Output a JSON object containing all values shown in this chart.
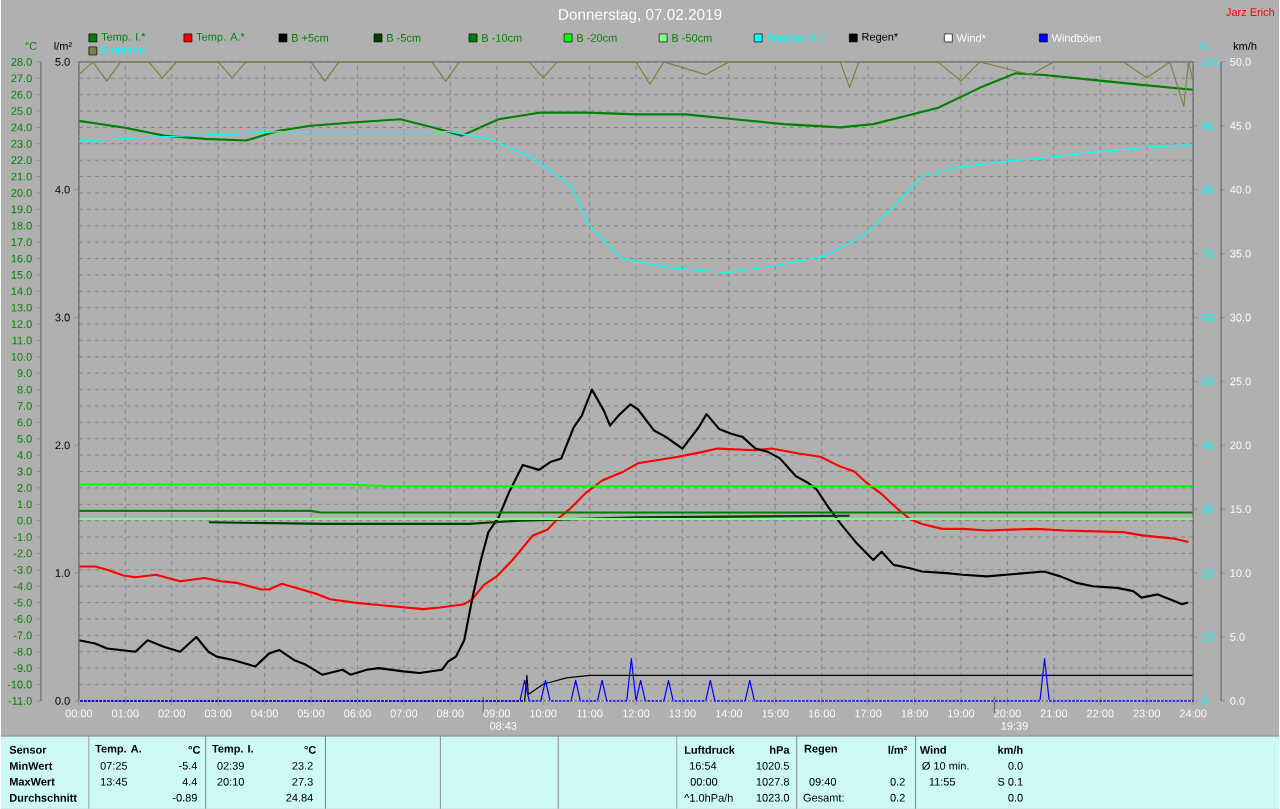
{
  "chart_data": [
    {
      "type": "line",
      "title": "Donnerstag, 07.02.2019",
      "ylabel": "°C",
      "y2label": "l/m²",
      "y3label": "%",
      "legend": "top",
      "grid": true,
      "xlim": [
        0,
        24
      ],
      "xticks": [
        {
          "value": 0,
          "label": "00:00"
        },
        {
          "value": 1,
          "label": "01:00"
        },
        {
          "value": 2,
          "label": "02:00"
        },
        {
          "value": 3,
          "label": "03:00"
        },
        {
          "value": 4,
          "label": "04:00"
        },
        {
          "value": 5,
          "label": "05:00"
        },
        {
          "value": 6,
          "label": "06:00"
        },
        {
          "value": 7,
          "label": "07:00"
        },
        {
          "value": 8,
          "label": "08:00"
        },
        {
          "value": 9,
          "label": "09:00"
        },
        {
          "value": 10,
          "label": "10:00"
        },
        {
          "value": 11,
          "label": "11:00"
        },
        {
          "value": 12,
          "label": "12:00"
        },
        {
          "value": 13,
          "label": "13:00"
        },
        {
          "value": 14,
          "label": "14:00"
        },
        {
          "value": 15,
          "label": "15:00"
        },
        {
          "value": 16,
          "label": "16:00"
        },
        {
          "value": 17,
          "label": "17:00"
        },
        {
          "value": 18,
          "label": "18:00"
        },
        {
          "value": 19,
          "label": "19:00"
        },
        {
          "value": 20,
          "label": "20:00"
        },
        {
          "value": 21,
          "label": "21:00"
        },
        {
          "value": 22,
          "label": "22:00"
        },
        {
          "value": 23,
          "label": "23:00"
        },
        {
          "value": 24,
          "label": "24:00"
        }
      ],
      "ylim": [
        -11,
        28
      ],
      "yticks": [
        {
          "value": -11,
          "label": "-11.0"
        },
        {
          "value": -10,
          "label": "-10.0"
        },
        {
          "value": -9,
          "label": "-9.0"
        },
        {
          "value": -8,
          "label": "-8.0"
        },
        {
          "value": -7,
          "label": "-7.0"
        },
        {
          "value": -6,
          "label": "-6.0"
        },
        {
          "value": -5,
          "label": "-5.0"
        },
        {
          "value": -4,
          "label": "-4.0"
        },
        {
          "value": -3,
          "label": "-3.0"
        },
        {
          "value": -2,
          "label": "-2.0"
        },
        {
          "value": -1,
          "label": "-1.0"
        },
        {
          "value": 0,
          "label": "0.0"
        },
        {
          "value": 1,
          "label": "1.0"
        },
        {
          "value": 2,
          "label": "2.0"
        },
        {
          "value": 3,
          "label": "3.0"
        },
        {
          "value": 4,
          "label": "4.0"
        },
        {
          "value": 5,
          "label": "5.0"
        },
        {
          "value": 6,
          "label": "6.0"
        },
        {
          "value": 7,
          "label": "7.0"
        },
        {
          "value": 8,
          "label": "8.0"
        },
        {
          "value": 9,
          "label": "9.0"
        },
        {
          "value": 10,
          "label": "10.0"
        },
        {
          "value": 11,
          "label": "11.0"
        },
        {
          "value": 12,
          "label": "12.0"
        },
        {
          "value": 13,
          "label": "13.0"
        },
        {
          "value": 14,
          "label": "14.0"
        },
        {
          "value": 15,
          "label": "15.0"
        },
        {
          "value": 16,
          "label": "16.0"
        },
        {
          "value": 17,
          "label": "17.0"
        },
        {
          "value": 18,
          "label": "18.0"
        },
        {
          "value": 19,
          "label": "19.0"
        },
        {
          "value": 20,
          "label": "20.0"
        },
        {
          "value": 21,
          "label": "21.0"
        },
        {
          "value": 22,
          "label": "22.0"
        },
        {
          "value": 23,
          "label": "23.0"
        },
        {
          "value": 24,
          "label": "24.0"
        },
        {
          "value": 25,
          "label": "25.0"
        },
        {
          "value": 26,
          "label": "26.0"
        },
        {
          "value": 27,
          "label": "27.0"
        },
        {
          "value": 28,
          "label": "28.0"
        }
      ],
      "y2lim": [
        0,
        5
      ],
      "y2ticks": [
        {
          "value": 0,
          "label": "0.0"
        },
        {
          "value": 1,
          "label": "1.0"
        },
        {
          "value": 2,
          "label": "2.0"
        },
        {
          "value": 3,
          "label": "3.0"
        },
        {
          "value": 4,
          "label": "4.0"
        },
        {
          "value": 5,
          "label": "5.0"
        }
      ],
      "y3lim": [
        0,
        100
      ],
      "y3ticks": [
        0,
        10,
        20,
        30,
        40,
        50,
        60,
        70,
        80,
        90,
        100
      ],
      "series": [
        {
          "name": "Temp. I.*",
          "color": "#008000",
          "x": [
            0,
            0.96,
            1.84,
            2.72,
            3.6,
            4.3,
            5.0,
            5.88,
            6.93,
            7.63,
            8.25,
            9.04,
            9.91,
            10.96,
            12.02,
            13.07,
            14.12,
            15.18,
            16.4,
            17.11,
            17.81,
            18.51,
            19.39,
            20.17,
            20.79,
            21.84,
            22.89,
            24
          ],
          "values": [
            24.4,
            24.0,
            23.5,
            23.3,
            23.2,
            23.8,
            24.1,
            24.3,
            24.5,
            24.0,
            23.5,
            24.5,
            24.9,
            24.9,
            24.8,
            24.8,
            24.5,
            24.2,
            24.0,
            24.2,
            24.7,
            25.2,
            26.4,
            27.3,
            27.2,
            26.9,
            26.6,
            26.3
          ]
        },
        {
          "name": "Temp. A.*",
          "color": "#ff0000",
          "x": [
            0,
            0.35,
            0.61,
            0.96,
            1.22,
            1.66,
            2.18,
            2.71,
            3.06,
            3.41,
            3.93,
            4.1,
            4.37,
            4.8,
            5.15,
            5.41,
            5.94,
            6.46,
            7.42,
            7.77,
            8.3,
            8.47,
            8.73,
            9.0,
            9.34,
            9.78,
            10.09,
            10.31,
            10.57,
            10.92,
            11.27,
            11.7,
            12.04,
            12.91,
            13.44,
            13.75,
            14.57,
            14.92,
            15.5,
            15.97,
            16.4,
            16.7,
            16.97,
            17.3,
            17.6,
            17.9,
            18.16,
            18.6,
            19.04,
            19.56,
            20.6,
            21.22,
            22.5,
            22.9,
            23.6,
            23.9
          ],
          "values": [
            -2.8,
            -2.8,
            -3.0,
            -3.35,
            -3.45,
            -3.3,
            -3.7,
            -3.5,
            -3.7,
            -3.8,
            -4.2,
            -4.2,
            -3.85,
            -4.2,
            -4.5,
            -4.8,
            -5.0,
            -5.15,
            -5.4,
            -5.3,
            -5.1,
            -4.8,
            -3.9,
            -3.4,
            -2.4,
            -0.9,
            -0.55,
            0.1,
            0.7,
            1.7,
            2.45,
            2.95,
            3.5,
            3.9,
            4.2,
            4.4,
            4.3,
            4.4,
            4.1,
            3.9,
            3.3,
            3.0,
            2.3,
            1.6,
            0.8,
            0.1,
            -0.2,
            -0.5,
            -0.5,
            -0.6,
            -0.5,
            -0.6,
            -0.7,
            -0.9,
            -1.1,
            -1.3
          ]
        },
        {
          "name": "B +5cm",
          "color": "#000000",
          "x": [
            0,
            0.35,
            0.61,
            1.22,
            1.48,
            1.83,
            2.18,
            2.53,
            2.79,
            2.97,
            3.32,
            3.8,
            4.1,
            4.32,
            4.63,
            4.89,
            5.24,
            5.68,
            5.85,
            6.2,
            6.46,
            6.99,
            7.34,
            7.82,
            7.95,
            8.12,
            8.3,
            8.47,
            8.65,
            8.82,
            9.04,
            9.26,
            9.56,
            9.91,
            10.17,
            10.39,
            10.66,
            10.83,
            11.05,
            11.31,
            11.44,
            11.62,
            11.88,
            12.04,
            12.39,
            12.65,
            13.0,
            13.35,
            13.52,
            13.79,
            14.05,
            14.3,
            14.57,
            14.84,
            15.1,
            15.45,
            15.71,
            15.89,
            16.15,
            16.41,
            16.76,
            17.11,
            17.29,
            17.55,
            17.9,
            18.16,
            18.69,
            19.04,
            19.56,
            20.79,
            21.14,
            21.49,
            21.84,
            22.36,
            22.71,
            22.89,
            23.24,
            23.59,
            23.76,
            23.89
          ],
          "values": [
            -7.3,
            -7.5,
            -7.8,
            -8.0,
            -7.3,
            -7.7,
            -8.0,
            -7.1,
            -8.0,
            -8.3,
            -8.5,
            -8.9,
            -8.1,
            -7.9,
            -8.5,
            -8.8,
            -9.4,
            -9.1,
            -9.4,
            -9.1,
            -9.0,
            -9.2,
            -9.3,
            -9.1,
            -8.6,
            -8.3,
            -7.3,
            -4.8,
            -2.5,
            -0.7,
            0.2,
            1.7,
            3.4,
            3.1,
            3.6,
            3.8,
            5.7,
            6.4,
            8.0,
            6.7,
            5.8,
            6.4,
            7.1,
            6.8,
            5.5,
            5.1,
            4.4,
            5.7,
            6.5,
            5.6,
            5.3,
            5.1,
            4.4,
            4.2,
            3.8,
            2.7,
            2.3,
            1.9,
            0.8,
            -0.2,
            -1.4,
            -2.4,
            -1.9,
            -2.7,
            -2.9,
            -3.1,
            -3.2,
            -3.3,
            -3.4,
            -3.1,
            -3.4,
            -3.8,
            -4.0,
            -4.1,
            -4.3,
            -4.7,
            -4.5,
            -4.9,
            -5.1,
            -5.0
          ]
        },
        {
          "name": "B -5cm",
          "color": "#004000",
          "x": [
            2.8,
            5.3,
            8.4,
            9.5,
            12.0,
            16.6
          ],
          "values": [
            -0.1,
            -0.2,
            -0.2,
            0.0,
            0.2,
            0.3
          ]
        },
        {
          "name": "B -10cm",
          "color": "#008000",
          "x": [
            0,
            5.0,
            5.2,
            24
          ],
          "values": [
            0.6,
            0.6,
            0.5,
            0.5
          ]
        },
        {
          "name": "B -20cm",
          "color": "#00ff00",
          "x": [
            0,
            5.8,
            6.7,
            24
          ],
          "values": [
            2.2,
            2.2,
            2.1,
            2.1
          ]
        },
        {
          "name": "B -50cm",
          "color": "#80ff80",
          "x": [
            0,
            24
          ],
          "values": [
            0.1,
            0.1
          ]
        },
        {
          "name": "Feuchte A.*",
          "color": "#00ffff",
          "axis": "y3",
          "x": [
            0,
            1.49,
            3.6,
            4.3,
            7.98,
            8.86,
            9.74,
            10.61,
            10.96,
            11.67,
            12.72,
            13.95,
            15.0,
            16.05,
            16.93,
            17.63,
            18.16,
            18.86,
            19.91,
            20.96,
            22.02,
            23.07,
            23.95
          ],
          "values": [
            87.6,
            88.2,
            88.8,
            89.1,
            89.1,
            87.9,
            85.1,
            80.6,
            74.8,
            69.3,
            67.8,
            67.0,
            68.1,
            69.6,
            72.9,
            78.0,
            82.1,
            83.4,
            84.4,
            85.1,
            86.0,
            86.7,
            87.0
          ]
        },
        {
          "name": "Regen*",
          "color": "#000000",
          "axis": "y2",
          "x": [
            0,
            9.6,
            9.65,
            9.68,
            10.0,
            10.5,
            11.0,
            24
          ],
          "values": [
            0,
            0,
            0.2,
            0.05,
            0.13,
            0.18,
            0.2,
            0.2
          ]
        },
        {
          "name": "Empfang",
          "color": "#808040",
          "axis": "y3",
          "x": [
            0,
            0.3,
            0.6,
            0.9,
            1.5,
            1.8,
            2.1,
            3.0,
            3.3,
            3.6,
            5.0,
            5.3,
            5.6,
            7.6,
            7.9,
            8.2,
            9.7,
            10.0,
            10.3,
            12.0,
            12.3,
            12.6,
            13.5,
            14.0,
            16.4,
            16.6,
            16.8,
            18.5,
            19.0,
            19.4,
            20.5,
            21.0,
            22.5,
            23.0,
            23.5,
            23.8,
            23.9,
            24
          ],
          "values": [
            98,
            100,
            97,
            100,
            100,
            97.5,
            100,
            100,
            97.5,
            100,
            100,
            97,
            100,
            100,
            97,
            100,
            100,
            97.5,
            100,
            100,
            96.5,
            100,
            98,
            100,
            100,
            96,
            100,
            100,
            97,
            100,
            98,
            100,
            100,
            97.5,
            100,
            93,
            100,
            97
          ]
        }
      ],
      "annotations": [
        "Jarz Erich",
        "08:43",
        "19:39",
        "Sensor",
        "MinWert",
        "MaxWert",
        "Durchschnitt",
        "Temp. A.",
        "°C",
        "07:25",
        "-5.4",
        "13:45",
        "4.4",
        "-0.89",
        "Temp. I.",
        "°C",
        "02:39",
        "23.2",
        "20:10",
        "27.3",
        "24.84",
        "Luftdruck",
        "hPa",
        "16:54",
        "1020.5",
        "00:00",
        "1027.8",
        "^1.0hPa/h",
        "1023.0",
        "Regen",
        "l/m²",
        "09:40",
        "0.2",
        "Gesamt:",
        "0.2",
        "Wind",
        "km/h",
        "Ø 10 min.",
        "0.0",
        "11:55",
        "S 0.1",
        "0.0"
      ]
    },
    {
      "type": "line",
      "ylabel": "km/h",
      "legend": "top",
      "tick_labels": "y",
      "xlim": [
        0,
        24
      ],
      "ylim": [
        0,
        50
      ],
      "yticks": [
        {
          "value": 0,
          "label": "0.0"
        },
        {
          "value": 5,
          "label": "5.0"
        },
        {
          "value": 10,
          "label": "10.0"
        },
        {
          "value": 15,
          "label": "15.0"
        },
        {
          "value": 20,
          "label": "20.0"
        },
        {
          "value": 25,
          "label": "25.0"
        },
        {
          "value": 30,
          "label": "30.0"
        },
        {
          "value": 35,
          "label": "35.0"
        },
        {
          "value": 40,
          "label": "40.0"
        },
        {
          "value": 45,
          "label": "45.0"
        },
        {
          "value": 50,
          "label": "50.0"
        }
      ],
      "series": [
        {
          "name": "Windböen",
          "color": "#0000ff",
          "x": [
            0,
            9.5,
            9.6,
            9.7,
            9.95,
            10.05,
            10.15,
            10.6,
            10.7,
            10.8,
            11.17,
            11.27,
            11.37,
            11.8,
            11.9,
            12.0,
            12.1,
            12.2,
            12.6,
            12.7,
            12.8,
            13.5,
            13.6,
            13.7,
            14.35,
            14.45,
            14.55,
            20.7,
            20.8,
            20.9,
            24
          ],
          "values": [
            0,
            0,
            1.6,
            0,
            0,
            1.6,
            0,
            0,
            1.6,
            0,
            0,
            1.6,
            0,
            0,
            3.3,
            0,
            1.6,
            0,
            0,
            1.6,
            0,
            0,
            1.6,
            0,
            0,
            1.6,
            0,
            0,
            3.3,
            0,
            0
          ]
        },
        {
          "name": "Wind*",
          "color": "#ffffff",
          "line_style": "dotted",
          "x": [
            0,
            24
          ],
          "values": [
            0,
            0
          ]
        }
      ]
    }
  ]
}
